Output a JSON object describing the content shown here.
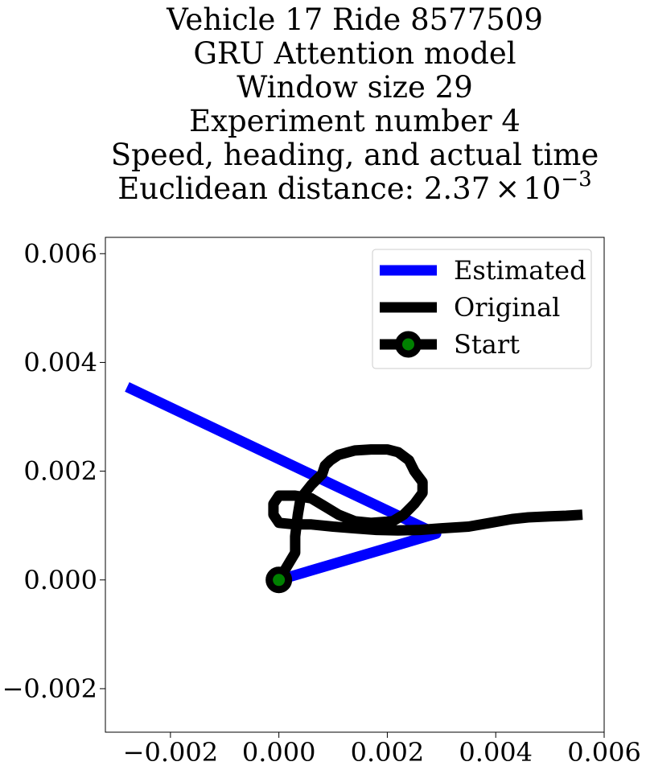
{
  "chart_data": {
    "type": "line",
    "title_lines": [
      "Vehicle 17 Ride 8577509",
      "GRU Attention model",
      "Window size 29",
      "Experiment number 4",
      "Speed, heading, and actual time"
    ],
    "title_distance": {
      "prefix": "Euclidean distance: 2.37",
      "times": "×",
      "base": "10",
      "exponent": "−3"
    },
    "xlabel": "",
    "ylabel": "",
    "xlim": [
      -0.0032,
      0.006
    ],
    "ylim": [
      -0.0028,
      0.0063
    ],
    "xticks": [
      -0.002,
      0.0,
      0.002,
      0.004,
      0.006
    ],
    "xtick_labels": [
      "−0.002",
      "0.000",
      "0.002",
      "0.004",
      "0.006"
    ],
    "yticks": [
      -0.002,
      0.0,
      0.002,
      0.004,
      0.006
    ],
    "ytick_labels": [
      "−0.002",
      "0.000",
      "0.002",
      "0.004",
      "0.006"
    ],
    "grid": false,
    "legend_position": "top-right",
    "series": [
      {
        "name": "Estimated",
        "color": "#0000ff",
        "x": [
          0.0,
          0.0029,
          -0.0028
        ],
        "y": [
          0.0,
          0.00085,
          0.00355
        ]
      },
      {
        "name": "Original",
        "color": "#000000",
        "x": [
          0.0,
          0.0003,
          0.0003,
          0.00035,
          0.0004,
          0.0006,
          0.0008,
          0.00085,
          0.00095,
          0.0011,
          0.0014,
          0.0017,
          0.002,
          0.0022,
          0.0024,
          0.0025,
          0.00265,
          0.00265,
          0.0025,
          0.0023,
          0.0021,
          0.0017,
          0.0014,
          0.0011,
          0.0008,
          0.0006,
          0.0003,
          0.0,
          -0.0001,
          -0.0001,
          0.0,
          0.0003,
          0.0006,
          0.001,
          0.0014,
          0.0018,
          0.0022,
          0.0026,
          0.003,
          0.0035,
          0.0039,
          0.0043,
          0.0046,
          0.005,
          0.0053,
          0.0056
        ],
        "y": [
          0.0,
          0.0005,
          0.0008,
          0.0012,
          0.0015,
          0.00175,
          0.00195,
          0.0021,
          0.0022,
          0.0023,
          0.00238,
          0.0024,
          0.0024,
          0.00235,
          0.0022,
          0.002,
          0.0018,
          0.0016,
          0.0014,
          0.0012,
          0.00108,
          0.00105,
          0.00108,
          0.0012,
          0.00138,
          0.0015,
          0.00155,
          0.00155,
          0.0014,
          0.0012,
          0.00105,
          0.00102,
          0.00102,
          0.00098,
          0.00095,
          0.00092,
          0.00091,
          0.00092,
          0.00095,
          0.00098,
          0.00105,
          0.00112,
          0.00115,
          0.00117,
          0.00118,
          0.0012
        ]
      },
      {
        "name": "Start",
        "color": "#000000",
        "marker_face_color": "#008000",
        "x": [
          0.0
        ],
        "y": [
          0.0
        ]
      }
    ]
  }
}
